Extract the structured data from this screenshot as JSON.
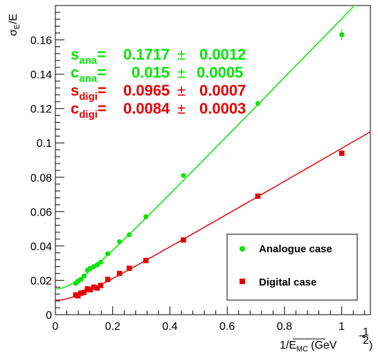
{
  "chart_data": {
    "type": "scatter",
    "title": "",
    "xlabel": "1/√E_MC (GeV^-1/2)",
    "ylabel": "σ_E/E",
    "xlabel_parts": {
      "prefix": "1/",
      "sym": "E",
      "sub": "MC",
      "unit_open": "(GeV",
      "sup_minus": "−",
      "sup_num": "1",
      "sup_den": "2",
      "unit_close": ")"
    },
    "ylabel_parts": {
      "sym": "σ",
      "sub": "E",
      "rest": "/E"
    },
    "xlim": [
      0,
      1.1
    ],
    "ylim": [
      0,
      0.18
    ],
    "xticks": [
      "0",
      "0.2",
      "0.4",
      "0.6",
      "0.8",
      "1"
    ],
    "xtick_values": [
      0,
      0.2,
      0.4,
      0.6,
      0.8,
      1.0
    ],
    "yticks": [
      "0",
      "0.02",
      "0.04",
      "0.06",
      "0.08",
      "0.1",
      "0.12",
      "0.14",
      "0.16"
    ],
    "ytick_values": [
      0,
      0.02,
      0.04,
      0.06,
      0.08,
      0.1,
      0.12,
      0.14,
      0.16
    ],
    "grid": false,
    "legend_position": "bottom-right",
    "series": [
      {
        "name": "Analogue case",
        "color": "#00e600",
        "marker": "circle",
        "x": [
          0.071,
          0.079,
          0.089,
          0.1,
          0.112,
          0.122,
          0.134,
          0.146,
          0.158,
          0.183,
          0.224,
          0.258,
          0.316,
          0.447,
          0.707,
          1.0
        ],
        "y": [
          0.0183,
          0.0195,
          0.0205,
          0.0225,
          0.026,
          0.027,
          0.028,
          0.029,
          0.0305,
          0.0355,
          0.0425,
          0.0465,
          0.057,
          0.081,
          0.123,
          0.163
        ],
        "fit": {
          "s": 0.1717,
          "c": 0.015
        }
      },
      {
        "name": "Digital case",
        "color": "#e60000",
        "marker": "square",
        "x": [
          0.071,
          0.079,
          0.089,
          0.1,
          0.112,
          0.122,
          0.134,
          0.146,
          0.158,
          0.183,
          0.224,
          0.258,
          0.316,
          0.447,
          0.707,
          1.0
        ],
        "y": [
          0.0115,
          0.011,
          0.0125,
          0.013,
          0.015,
          0.0145,
          0.016,
          0.0155,
          0.017,
          0.0205,
          0.024,
          0.027,
          0.0315,
          0.0435,
          0.069,
          0.094
        ],
        "fit": {
          "s": 0.0965,
          "c": 0.0084
        }
      }
    ],
    "fit_results": [
      {
        "label_main": "s",
        "label_sub": "ana",
        "eq": "=",
        "value": "0.1717",
        "pm": "±",
        "error": "0.0012",
        "color": "#00e600"
      },
      {
        "label_main": "c",
        "label_sub": "ana",
        "eq": "=",
        "value": "0.015",
        "pm": "±",
        "error": "0.0005",
        "color": "#00e600"
      },
      {
        "label_main": "s",
        "label_sub": "digi",
        "eq": "=",
        "value": "0.0965",
        "pm": "±",
        "error": "0.0007",
        "color": "#e60000"
      },
      {
        "label_main": "c",
        "label_sub": "digi",
        "eq": "=",
        "value": "0.0084",
        "pm": "±",
        "error": "0.0003",
        "color": "#e60000"
      }
    ]
  }
}
